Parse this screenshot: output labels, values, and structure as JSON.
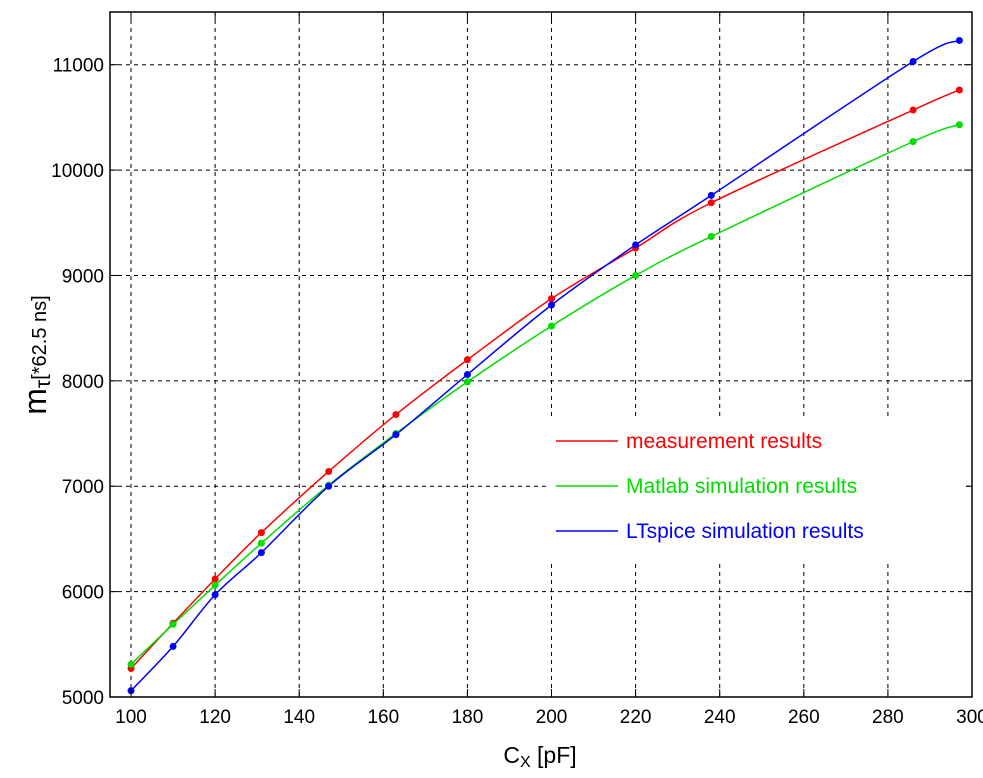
{
  "chart_data": {
    "type": "line",
    "title": "",
    "xlabel": {
      "main": "C",
      "sub": "X",
      "unit": " [pF]"
    },
    "ylabel": {
      "main": "m",
      "sub": "τ",
      "unit": "[*62.5 ns]"
    },
    "xlim": [
      95,
      300
    ],
    "ylim": [
      5000,
      11500
    ],
    "x_ticks": [
      100,
      120,
      140,
      160,
      180,
      200,
      220,
      240,
      260,
      280,
      300
    ],
    "y_ticks": [
      5000,
      6000,
      7000,
      8000,
      9000,
      10000,
      11000
    ],
    "x_tick_labels": [
      "100",
      "120",
      "140",
      "160",
      "180",
      "200",
      "220",
      "240",
      "260",
      "280",
      "300"
    ],
    "y_tick_labels": [
      "5000",
      "6000",
      "7000",
      "8000",
      "9000",
      "10000",
      "11000"
    ],
    "grid": true,
    "legend_position": "lower-right",
    "series": [
      {
        "name": "measurement results",
        "color": "#ff0000",
        "x": [
          100,
          110,
          120,
          131,
          147,
          163,
          180,
          200,
          220,
          238,
          286,
          297
        ],
        "y": [
          5270,
          5700,
          6120,
          6560,
          7140,
          7680,
          8200,
          8780,
          9260,
          9690,
          10570,
          10760
        ]
      },
      {
        "name": "Matlab simulation results",
        "color": "#00dd00",
        "x": [
          100,
          110,
          120,
          131,
          147,
          163,
          180,
          200,
          220,
          238,
          286,
          297
        ],
        "y": [
          5310,
          5690,
          6060,
          6460,
          7010,
          7500,
          7990,
          8520,
          9000,
          9370,
          10270,
          10430
        ]
      },
      {
        "name": "LTspice simulation results",
        "color": "#0000ff",
        "x": [
          100,
          110,
          120,
          131,
          147,
          163,
          180,
          200,
          220,
          238,
          286,
          297
        ],
        "y": [
          5060,
          5480,
          5970,
          6370,
          7000,
          7490,
          8060,
          8720,
          9290,
          9760,
          11030,
          11230
        ]
      }
    ]
  }
}
